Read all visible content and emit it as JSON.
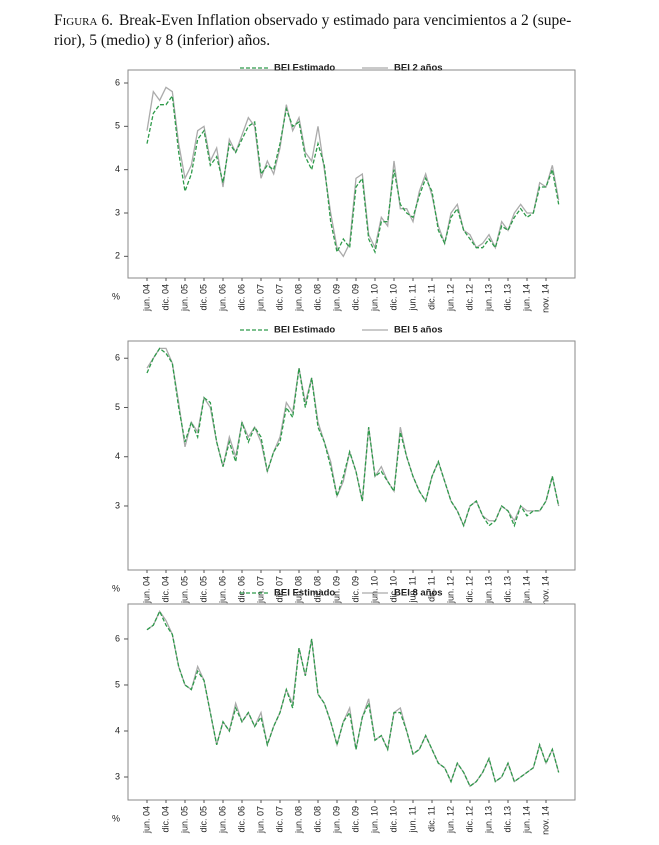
{
  "caption": {
    "label": "Figura 6.",
    "lines": [
      "Break-Even Inflation observado y estimado para vencimientos a 2 (supe-",
      "rior), 5 (medio) y 8 (inferior) años."
    ]
  },
  "chart_data": [
    {
      "type": "line",
      "unit_label": "%",
      "categories": [
        "jun. 04",
        null,
        null,
        "dic. 04",
        null,
        null,
        "jun. 05",
        null,
        null,
        "dic. 05",
        null,
        null,
        "jun. 06",
        null,
        null,
        "dic. 06",
        null,
        null,
        "jun. 07",
        null,
        null,
        "dic. 07",
        null,
        null,
        "jun. 08",
        null,
        null,
        "dic. 08",
        null,
        null,
        "jun. 09",
        null,
        null,
        "dic. 09",
        null,
        null,
        "jun. 10",
        null,
        null,
        "dic. 10",
        null,
        null,
        "jun. 11",
        null,
        null,
        "dic. 11",
        null,
        null,
        "jun. 12",
        null,
        null,
        "dic. 12",
        null,
        null,
        "jun. 13",
        null,
        null,
        "dic. 13",
        null,
        null,
        "jun. 14",
        null,
        null,
        "nov. 14",
        null,
        null
      ],
      "ylim": [
        1.5,
        6.3
      ],
      "yticks": [
        2,
        3,
        4,
        5,
        6
      ],
      "series": [
        {
          "name": "BEI Estimado",
          "color": "#2e9a4a",
          "style": "dashed",
          "values": [
            4.6,
            5.3,
            5.5,
            5.5,
            5.7,
            4.4,
            3.5,
            3.9,
            4.7,
            4.9,
            4.1,
            4.3,
            3.7,
            4.6,
            4.4,
            4.7,
            5.0,
            5.1,
            3.9,
            4.1,
            4.0,
            4.6,
            5.4,
            5.0,
            5.1,
            4.3,
            4.0,
            4.6,
            4.1,
            2.8,
            2.1,
            2.4,
            2.2,
            3.6,
            3.8,
            2.4,
            2.1,
            2.8,
            2.8,
            4.0,
            3.2,
            3.0,
            2.9,
            3.4,
            3.8,
            3.5,
            2.6,
            2.3,
            2.9,
            3.1,
            2.6,
            2.4,
            2.2,
            2.2,
            2.4,
            2.2,
            2.7,
            2.6,
            2.9,
            3.1,
            2.9,
            3.0,
            3.6,
            3.6,
            4.0,
            3.2
          ]
        },
        {
          "name": "BEI 2 años",
          "color": "#ababab",
          "style": "solid",
          "values": [
            4.9,
            5.8,
            5.6,
            5.9,
            5.8,
            4.6,
            3.8,
            4.1,
            4.9,
            5.0,
            4.2,
            4.5,
            3.6,
            4.7,
            4.4,
            4.8,
            5.2,
            5.0,
            3.8,
            4.2,
            3.9,
            4.5,
            5.5,
            4.9,
            5.2,
            4.4,
            4.2,
            5.0,
            4.0,
            3.0,
            2.2,
            2.0,
            2.3,
            3.8,
            3.9,
            2.5,
            2.2,
            2.9,
            2.7,
            4.2,
            3.1,
            3.1,
            2.8,
            3.5,
            3.9,
            3.4,
            2.7,
            2.3,
            3.0,
            3.2,
            2.6,
            2.5,
            2.2,
            2.3,
            2.5,
            2.2,
            2.8,
            2.6,
            3.0,
            3.2,
            3.0,
            3.0,
            3.7,
            3.6,
            4.1,
            3.3
          ]
        }
      ]
    },
    {
      "type": "line",
      "unit_label": "%",
      "categories": [
        "jun. 04",
        null,
        null,
        "dic. 04",
        null,
        null,
        "jun. 05",
        null,
        null,
        "dic. 05",
        null,
        null,
        "jun. 06",
        null,
        null,
        "dic. 06",
        null,
        null,
        "jun. 07",
        null,
        null,
        "dic. 07",
        null,
        null,
        "jun. 08",
        null,
        null,
        "dic. 08",
        null,
        null,
        "jun. 09",
        null,
        null,
        "dic. 09",
        null,
        null,
        "jun. 10",
        null,
        null,
        "dic. 10",
        null,
        null,
        "jun. 11",
        null,
        null,
        "dic. 11",
        null,
        null,
        "jun. 12",
        null,
        null,
        "dic. 12",
        null,
        null,
        "jun. 13",
        null,
        null,
        "dic. 13",
        null,
        null,
        "jun. 14",
        null,
        null,
        "nov. 14",
        null,
        null
      ],
      "ylim": [
        1.7,
        6.35
      ],
      "yticks": [
        3,
        4,
        5,
        6
      ],
      "series": [
        {
          "name": "BEI Estimado",
          "color": "#2e9a4a",
          "style": "dashed",
          "values": [
            5.7,
            6.0,
            6.2,
            6.1,
            5.9,
            5.0,
            4.3,
            4.7,
            4.4,
            5.2,
            5.1,
            4.3,
            3.8,
            4.3,
            3.9,
            4.7,
            4.3,
            4.6,
            4.4,
            3.7,
            4.1,
            4.3,
            5.0,
            4.8,
            5.8,
            5.0,
            5.6,
            4.6,
            4.3,
            3.8,
            3.2,
            3.6,
            4.1,
            3.7,
            3.1,
            4.6,
            3.6,
            3.7,
            3.5,
            3.3,
            4.5,
            4.0,
            3.6,
            3.3,
            3.1,
            3.6,
            3.9,
            3.5,
            3.1,
            2.9,
            2.6,
            3.0,
            3.1,
            2.8,
            2.6,
            2.7,
            3.0,
            2.9,
            2.6,
            3.0,
            2.8,
            2.9,
            2.9,
            3.1,
            3.6,
            3.0
          ]
        },
        {
          "name": "BEI 5 años",
          "color": "#ababab",
          "style": "solid",
          "values": [
            5.8,
            6.0,
            6.2,
            6.2,
            5.9,
            5.1,
            4.2,
            4.7,
            4.5,
            5.2,
            5.0,
            4.3,
            3.8,
            4.4,
            4.0,
            4.7,
            4.4,
            4.6,
            4.3,
            3.7,
            4.1,
            4.4,
            5.1,
            4.9,
            5.8,
            5.1,
            5.6,
            4.7,
            4.3,
            3.9,
            3.2,
            3.5,
            4.1,
            3.7,
            3.1,
            4.6,
            3.6,
            3.8,
            3.5,
            3.3,
            4.6,
            4.0,
            3.6,
            3.3,
            3.1,
            3.6,
            3.9,
            3.5,
            3.1,
            2.9,
            2.6,
            3.0,
            3.1,
            2.8,
            2.7,
            2.7,
            3.0,
            2.9,
            2.7,
            3.0,
            2.9,
            2.9,
            2.9,
            3.1,
            3.6,
            3.0
          ]
        }
      ]
    },
    {
      "type": "line",
      "unit_label": "%",
      "categories": [
        "jun. 04",
        null,
        null,
        "dic. 04",
        null,
        null,
        "jun. 05",
        null,
        null,
        "dic. 05",
        null,
        null,
        "jun. 06",
        null,
        null,
        "dic. 06",
        null,
        null,
        "jun. 07",
        null,
        null,
        "dic. 07",
        null,
        null,
        "jun. 08",
        null,
        null,
        "dic. 08",
        null,
        null,
        "jun. 09",
        null,
        null,
        "dic. 09",
        null,
        null,
        "jun. 10",
        null,
        null,
        "dic. 10",
        null,
        null,
        "jun. 11",
        null,
        null,
        "dic. 11",
        null,
        null,
        "jun. 12",
        null,
        null,
        "dic. 12",
        null,
        null,
        "jun. 13",
        null,
        null,
        "dic. 13",
        null,
        null,
        "jun. 14",
        null,
        null,
        "nov. 14",
        null,
        null
      ],
      "ylim": [
        2.5,
        6.76
      ],
      "yticks": [
        3,
        4,
        5,
        6
      ],
      "series": [
        {
          "name": "BEI Estimado",
          "color": "#2e9a4a",
          "style": "dashed",
          "values": [
            6.2,
            6.3,
            6.6,
            6.3,
            6.1,
            5.4,
            5.0,
            4.9,
            5.3,
            5.1,
            4.4,
            3.7,
            4.2,
            4.0,
            4.5,
            4.2,
            4.4,
            4.1,
            4.3,
            3.7,
            4.1,
            4.4,
            4.9,
            4.5,
            5.8,
            5.2,
            6.0,
            4.8,
            4.6,
            4.2,
            3.7,
            4.2,
            4.4,
            3.6,
            4.3,
            4.6,
            3.8,
            3.9,
            3.6,
            4.4,
            4.4,
            4.0,
            3.5,
            3.6,
            3.9,
            3.6,
            3.3,
            3.2,
            2.9,
            3.3,
            3.1,
            2.8,
            2.9,
            3.1,
            3.4,
            2.9,
            3.0,
            3.3,
            2.9,
            3.0,
            3.1,
            3.2,
            3.7,
            3.3,
            3.6,
            3.1
          ]
        },
        {
          "name": "BEI 8 años",
          "color": "#ababab",
          "style": "solid",
          "values": [
            6.2,
            6.3,
            6.6,
            6.4,
            6.1,
            5.4,
            5.0,
            4.9,
            5.4,
            5.1,
            4.4,
            3.7,
            4.2,
            4.0,
            4.6,
            4.2,
            4.4,
            4.1,
            4.4,
            3.7,
            4.1,
            4.4,
            4.9,
            4.6,
            5.8,
            5.2,
            6.0,
            4.8,
            4.6,
            4.2,
            3.7,
            4.2,
            4.5,
            3.6,
            4.3,
            4.7,
            3.8,
            3.9,
            3.6,
            4.4,
            4.5,
            4.0,
            3.5,
            3.6,
            3.9,
            3.6,
            3.3,
            3.2,
            2.9,
            3.3,
            3.1,
            2.8,
            2.9,
            3.1,
            3.4,
            2.9,
            3.0,
            3.3,
            2.9,
            3.0,
            3.1,
            3.2,
            3.7,
            3.3,
            3.6,
            3.1
          ]
        }
      ]
    }
  ]
}
